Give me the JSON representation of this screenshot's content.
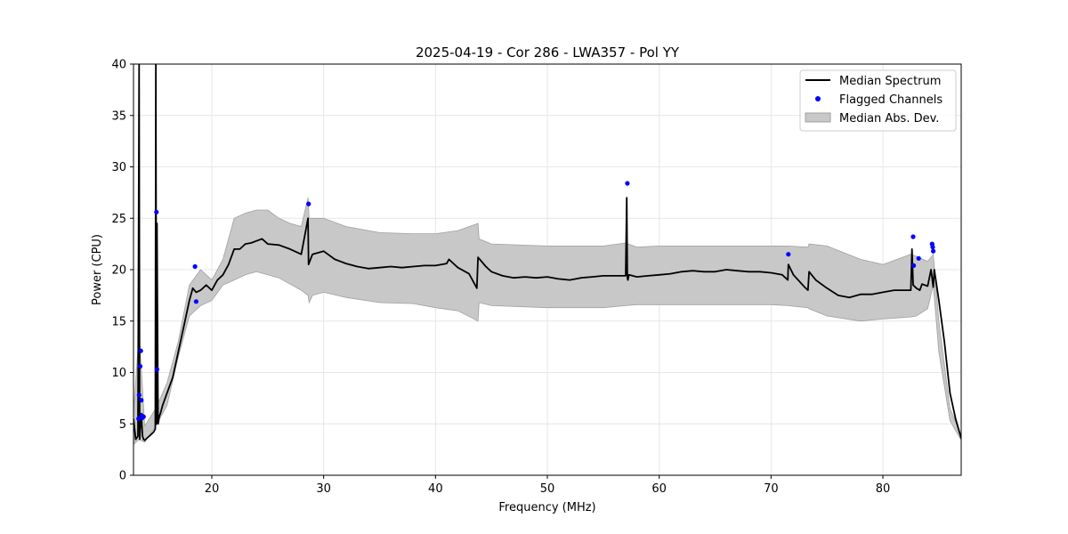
{
  "chart_data": {
    "type": "line",
    "title": "2025-04-19 - Cor 286 - LWA357 - Pol YY",
    "xlabel": "Frequency (MHz)",
    "ylabel": "Power (CPU)",
    "xlim": [
      13.0,
      87.0
    ],
    "ylim": [
      0,
      40
    ],
    "xticks": [
      20,
      30,
      40,
      50,
      60,
      70,
      80
    ],
    "yticks": [
      0,
      5,
      10,
      15,
      20,
      25,
      30,
      35,
      40
    ],
    "grid": true,
    "legend_position": "top-right",
    "colors": {
      "median": "#000000",
      "flagged": "#0000ff",
      "mad_fill": "#c8c8c8",
      "mad_edge": "#a0a0a0"
    },
    "series": [
      {
        "name": "Median Spectrum",
        "kind": "line",
        "x": [
          13.0,
          13.2,
          13.4,
          13.5,
          13.55,
          13.6,
          13.7,
          13.8,
          13.9,
          14.0,
          14.2,
          14.5,
          14.8,
          14.95,
          15.0,
          15.05,
          15.1,
          15.2,
          15.25,
          15.3,
          15.4,
          15.6,
          16.0,
          16.5,
          17.0,
          17.5,
          18.0,
          18.3,
          18.6,
          19.0,
          19.5,
          20.0,
          20.5,
          21.0,
          21.5,
          22.0,
          22.5,
          23.0,
          23.5,
          24.0,
          24.5,
          25.0,
          26.0,
          27.0,
          28.0,
          28.6,
          28.65,
          29.0,
          30.0,
          31.0,
          32.0,
          33.0,
          34.0,
          35.0,
          36.0,
          37.0,
          38.0,
          39.0,
          40.0,
          41.0,
          41.2,
          42.0,
          43.0,
          43.7,
          43.8,
          44.5,
          45.0,
          46.0,
          47.0,
          48.0,
          49.0,
          50.0,
          51.0,
          52.0,
          53.0,
          54.0,
          55.0,
          56.0,
          57.0,
          57.1,
          57.15,
          57.2,
          57.3,
          58.0,
          59.0,
          60.0,
          61.0,
          62.0,
          63.0,
          64.0,
          65.0,
          66.0,
          67.0,
          68.0,
          69.0,
          70.0,
          71.0,
          71.5,
          71.55,
          72.0,
          73.0,
          73.3,
          73.4,
          74.0,
          75.0,
          76.0,
          77.0,
          78.0,
          79.0,
          80.0,
          81.0,
          82.0,
          82.5,
          82.6,
          82.7,
          83.0,
          83.3,
          83.5,
          84.0,
          84.3,
          84.5,
          84.6,
          85.0,
          85.5,
          86.0,
          86.5,
          87.0
        ],
        "y": [
          5.5,
          3.5,
          3.8,
          45,
          3.5,
          4.5,
          6.0,
          3.8,
          3.5,
          3.4,
          3.6,
          3.9,
          4.2,
          4.5,
          50,
          5.0,
          24.5,
          5.0,
          5.3,
          5.7,
          6.0,
          6.8,
          8.0,
          9.5,
          12.0,
          14.5,
          17.0,
          18.2,
          17.8,
          18.0,
          18.5,
          18.0,
          19.0,
          19.5,
          20.5,
          22.0,
          22.0,
          22.5,
          22.6,
          22.8,
          23.0,
          22.5,
          22.4,
          22.0,
          21.5,
          25.0,
          20.5,
          21.5,
          21.8,
          21.0,
          20.6,
          20.3,
          20.1,
          20.2,
          20.3,
          20.2,
          20.3,
          20.4,
          20.4,
          20.6,
          21.0,
          20.2,
          19.6,
          18.2,
          21.2,
          20.3,
          19.8,
          19.4,
          19.2,
          19.3,
          19.2,
          19.3,
          19.1,
          19.0,
          19.2,
          19.3,
          19.4,
          19.4,
          19.4,
          27.0,
          19.2,
          19.0,
          19.5,
          19.3,
          19.4,
          19.5,
          19.6,
          19.8,
          19.9,
          19.8,
          19.8,
          20.0,
          19.9,
          19.8,
          19.8,
          19.7,
          19.5,
          19.0,
          20.5,
          19.5,
          18.3,
          18.0,
          19.8,
          19.0,
          18.2,
          17.5,
          17.3,
          17.6,
          17.6,
          17.8,
          18.0,
          18.0,
          18.0,
          22.0,
          18.5,
          18.2,
          18.0,
          18.6,
          18.4,
          20.0,
          18.3,
          20.0,
          17.0,
          13.0,
          8.0,
          5.5,
          3.6
        ]
      },
      {
        "name": "Flagged Channels",
        "kind": "scatter",
        "x": [
          13.45,
          13.5,
          13.6,
          13.65,
          13.7,
          13.75,
          13.8,
          13.9,
          15.05,
          15.1,
          18.5,
          18.6,
          28.65,
          57.15,
          71.55,
          82.7,
          82.75,
          83.2,
          84.4,
          84.45,
          84.5
        ],
        "y": [
          5.5,
          7.8,
          10.6,
          12.1,
          7.3,
          5.8,
          5.6,
          5.7,
          25.6,
          10.3,
          20.3,
          16.9,
          26.4,
          28.4,
          21.5,
          23.2,
          20.4,
          21.1,
          22.5,
          22.2,
          21.8
        ]
      },
      {
        "name": "Median Abs. Dev.",
        "kind": "band",
        "x": [
          13.0,
          13.5,
          14.0,
          15.0,
          16.0,
          17.0,
          18.0,
          19.0,
          20.0,
          21.0,
          22.0,
          23.0,
          24.0,
          25.0,
          26.0,
          27.0,
          28.0,
          28.6,
          28.7,
          29.0,
          30.0,
          32.0,
          35.0,
          38.0,
          40.0,
          42.0,
          43.8,
          43.9,
          45.0,
          50.0,
          55.0,
          57.0,
          58.0,
          60.0,
          65.0,
          70.0,
          71.5,
          73.3,
          73.4,
          75.0,
          78.0,
          80.0,
          82.5,
          83.0,
          84.0,
          84.5,
          85.0,
          86.0,
          87.0
        ],
        "y_low": [
          3.0,
          3.5,
          3.2,
          4.8,
          6.8,
          11.5,
          15.5,
          16.5,
          17.0,
          18.5,
          19.0,
          19.5,
          19.8,
          19.5,
          19.2,
          18.6,
          18.0,
          17.5,
          16.8,
          17.5,
          17.8,
          17.3,
          16.8,
          16.7,
          16.3,
          16.0,
          15.0,
          16.8,
          16.5,
          16.3,
          16.3,
          16.5,
          16.6,
          16.6,
          16.6,
          16.6,
          16.5,
          16.3,
          16.2,
          15.5,
          15.0,
          15.2,
          15.4,
          15.5,
          16.2,
          18.5,
          12.0,
          5.3,
          3.4
        ],
        "y_high": [
          6.0,
          14.0,
          4.8,
          6.5,
          9.0,
          13.0,
          18.5,
          20.0,
          19.0,
          21.0,
          25.0,
          25.5,
          25.8,
          25.8,
          25.0,
          24.5,
          24.2,
          27.0,
          25.0,
          25.0,
          25.0,
          24.2,
          23.6,
          23.5,
          23.5,
          23.8,
          24.5,
          23.0,
          22.5,
          22.3,
          22.3,
          22.6,
          22.2,
          22.3,
          22.3,
          22.3,
          22.3,
          22.2,
          22.5,
          22.3,
          21.0,
          20.5,
          21.5,
          21.3,
          20.8,
          21.5,
          15.0,
          6.5,
          3.9
        ]
      }
    ]
  }
}
